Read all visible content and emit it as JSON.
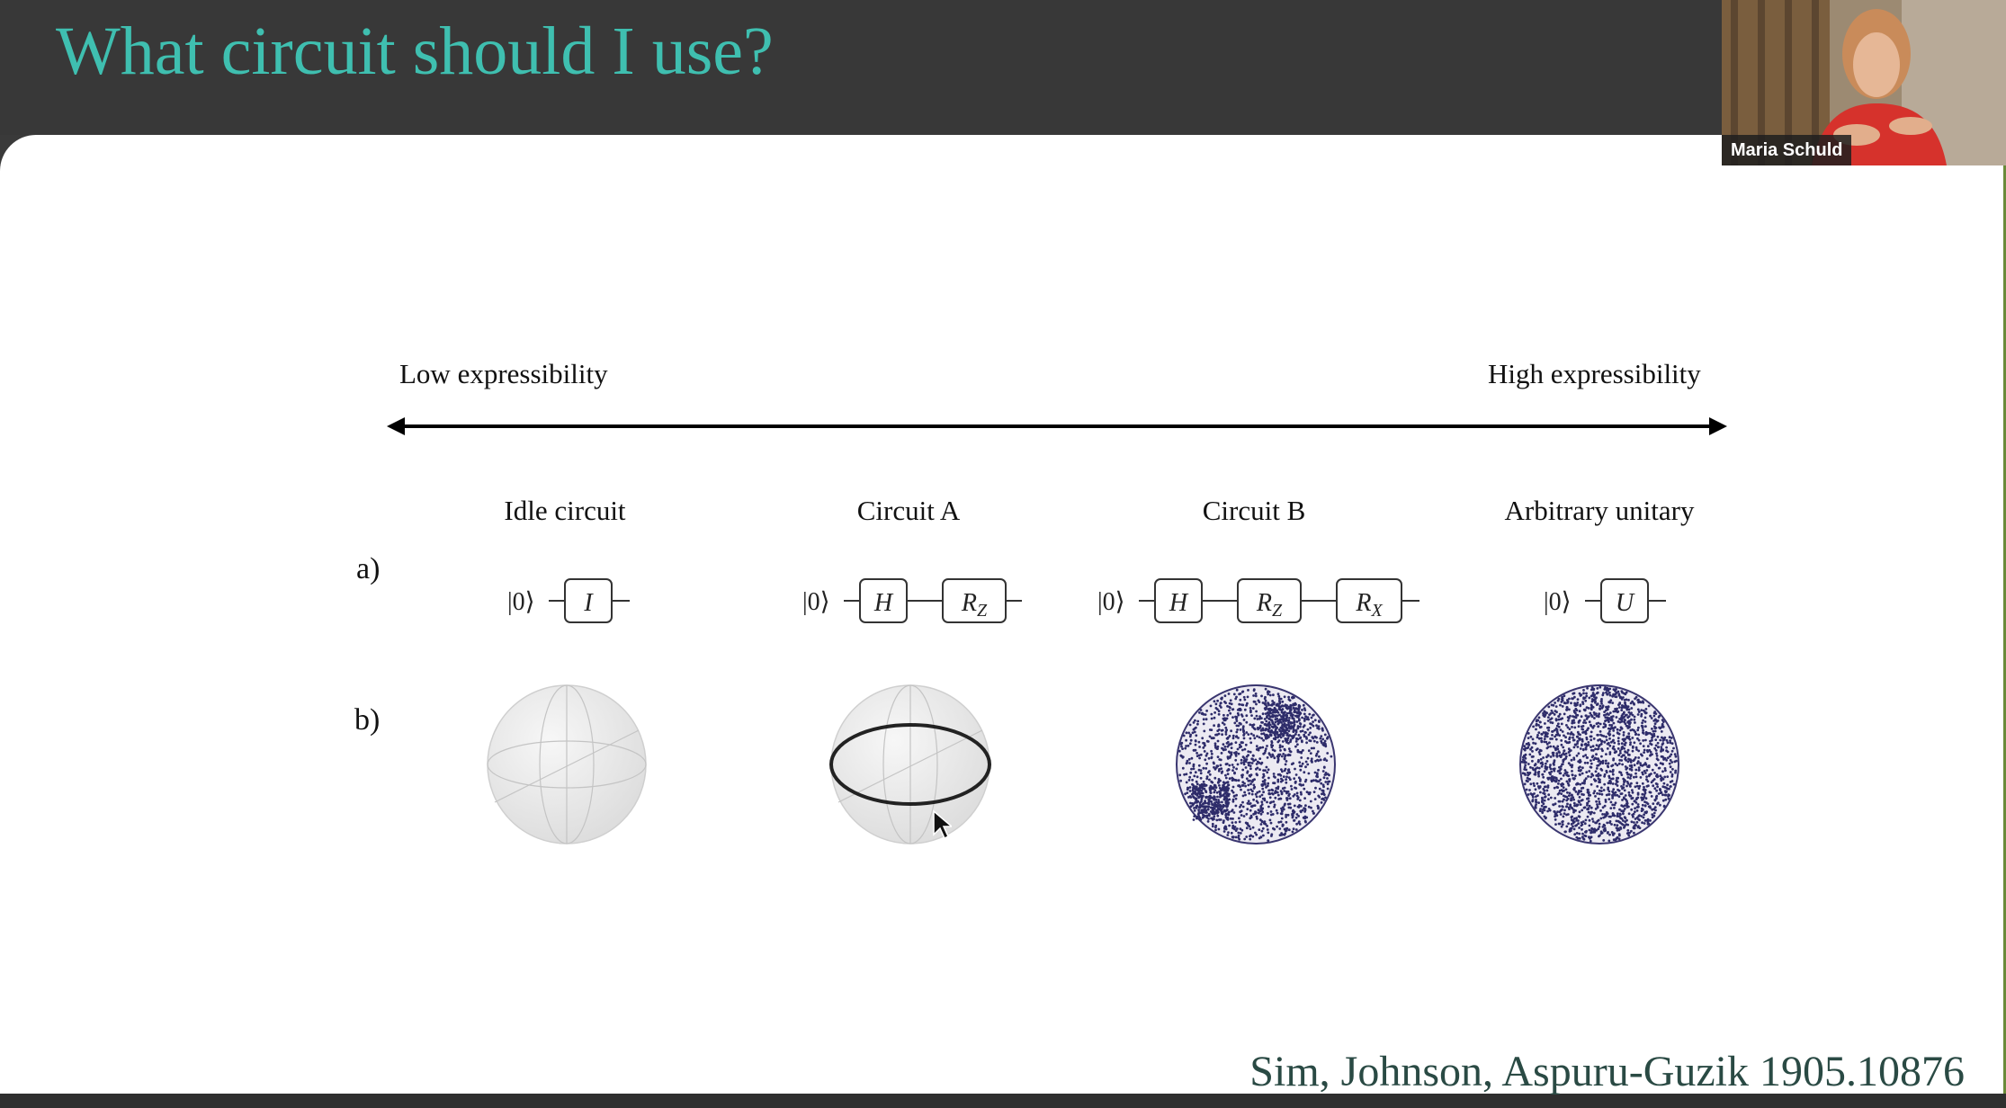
{
  "slide": {
    "title": "What circuit should I use?",
    "axis": {
      "low_label": "Low expressibility",
      "high_label": "High expressibility"
    },
    "row_labels": {
      "a": "a)",
      "b": "b)"
    },
    "columns": [
      {
        "label": "Idle circuit",
        "ket": "|0⟩",
        "gates": [
          "I"
        ],
        "sphere": "idle"
      },
      {
        "label": "Circuit A",
        "ket": "|0⟩",
        "gates": [
          "H",
          "R_Z"
        ],
        "sphere": "equator"
      },
      {
        "label": "Circuit B",
        "ket": "|0⟩",
        "gates": [
          "H",
          "R_Z",
          "R_X"
        ],
        "sphere": "dense-partial"
      },
      {
        "label": "Arbitrary unitary",
        "ket": "|0⟩",
        "gates": [
          "U"
        ],
        "sphere": "dense-uniform"
      }
    ],
    "citation": "Sim, Johnson, Aspuru-Guzik 1905.10876",
    "colors": {
      "title": "#3fbfb0",
      "citation": "#2a4a44",
      "dots": "#2e2c6a"
    }
  },
  "video": {
    "participant_name": "Maria Schuld"
  }
}
